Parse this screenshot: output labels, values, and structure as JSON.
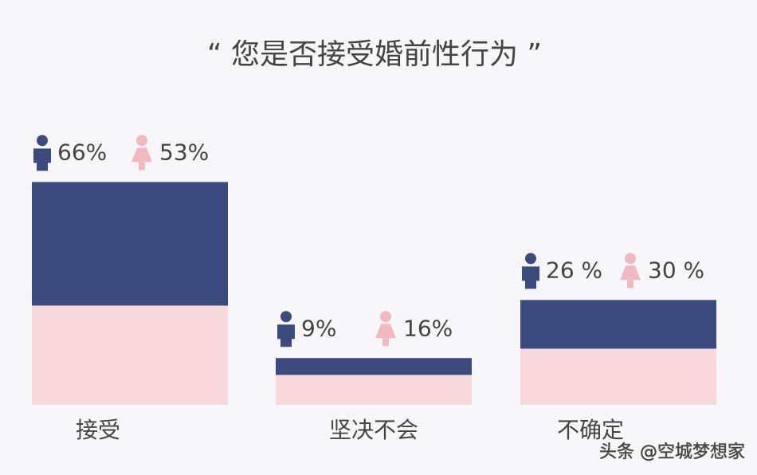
{
  "chart_data": {
    "type": "bar",
    "stacked": true,
    "title": "“ 您是否接受婚前性行为 ”",
    "categories": [
      "接受",
      "坚决不会",
      "不确定"
    ],
    "series": [
      {
        "color": "#f6d8dd",
        "values": [
          53,
          16,
          30
        ],
        "value_labels": [
          "53%",
          "16%",
          "30 %"
        ]
      },
      {
        "color": "#3c4a7e",
        "values": [
          66,
          9,
          26
        ],
        "value_labels": [
          "66%",
          "9%",
          "26 %"
        ]
      }
    ],
    "watermark": "头条 @空城梦想家"
  }
}
